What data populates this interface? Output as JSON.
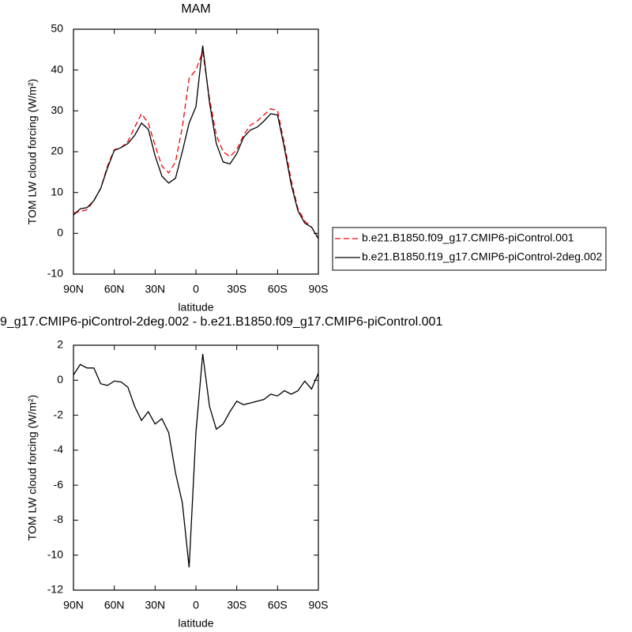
{
  "chart_data": [
    {
      "type": "line",
      "title": "MAM",
      "xlabel": "latitude",
      "ylabel": "TOM LW cloud forcing (W/m²)",
      "x": [
        90,
        85,
        80,
        75,
        70,
        65,
        60,
        55,
        50,
        45,
        40,
        35,
        30,
        25,
        20,
        15,
        10,
        5,
        0,
        -5,
        -10,
        -15,
        -20,
        -25,
        -30,
        -35,
        -40,
        -45,
        -50,
        -55,
        -60,
        -65,
        -70,
        -75,
        -80,
        -85,
        -90
      ],
      "series": [
        {
          "name": "b.e21.B1850.f09_g17.CMIP6-piControl.001",
          "color": "#ff0000",
          "dashed": true,
          "values": [
            5,
            5.3,
            5.8,
            8,
            11,
            16.5,
            20.5,
            21,
            22.5,
            26,
            29.3,
            27,
            21.5,
            16.5,
            14.8,
            17.5,
            26,
            38,
            40,
            44.5,
            33,
            24,
            20,
            18.8,
            20.5,
            24,
            26.5,
            27.5,
            29,
            30.5,
            30,
            22,
            13,
            6,
            3,
            1.5,
            -1.3
          ]
        },
        {
          "name": "b.e21.B1850.f19_g17.CMIP6-piControl-2deg.002",
          "color": "#000000",
          "dashed": false,
          "values": [
            4.5,
            6,
            6.3,
            8,
            11,
            16,
            20.3,
            21,
            22,
            24,
            27,
            25.5,
            19,
            14,
            12.3,
            13.5,
            20,
            27,
            31,
            46,
            32,
            22,
            17.5,
            17,
            19.5,
            23.5,
            25.3,
            26,
            27.5,
            29.3,
            29,
            21,
            12,
            5.5,
            2.5,
            1.5,
            -1.3
          ]
        }
      ],
      "xlim": [
        90,
        -90
      ],
      "xticks": [
        {
          "value": 90,
          "label": "90N"
        },
        {
          "value": 60,
          "label": "60N"
        },
        {
          "value": 30,
          "label": "30N"
        },
        0,
        {
          "value": -30,
          "label": "30S"
        },
        {
          "value": -60,
          "label": "60S"
        },
        {
          "value": -90,
          "label": "90S"
        }
      ],
      "ylim": [
        -10,
        50
      ],
      "yticks": [
        -10,
        0,
        10,
        20,
        30,
        40,
        50
      ],
      "legend": "right"
    },
    {
      "type": "line",
      "title": "9_g17.CMIP6-piControl-2deg.002 - b.e21.B1850.f09_g17.CMIP6-piControl.001",
      "xlabel": "latitude",
      "ylabel": "TOM LW cloud forcing (W/m²)",
      "x": [
        90,
        85,
        80,
        75,
        70,
        65,
        60,
        55,
        50,
        45,
        40,
        35,
        30,
        25,
        20,
        15,
        10,
        5,
        0,
        -5,
        -10,
        -15,
        -20,
        -25,
        -30,
        -35,
        -40,
        -45,
        -50,
        -55,
        -60,
        -65,
        -70,
        -75,
        -80,
        -85,
        -90
      ],
      "series": [
        {
          "color": "#000000",
          "dashed": false,
          "values": [
            0.3,
            0.9,
            0.7,
            0.7,
            -0.2,
            -0.3,
            -0.05,
            -0.1,
            -0.4,
            -1.5,
            -2.3,
            -1.8,
            -2.5,
            -2.2,
            -3.0,
            -5.3,
            -7.0,
            -10.7,
            -3.0,
            1.5,
            -1.5,
            -2.8,
            -2.5,
            -1.8,
            -1.2,
            -1.4,
            -1.3,
            -1.2,
            -1.1,
            -0.8,
            -0.9,
            -0.6,
            -0.8,
            -0.6,
            -0.05,
            -0.5,
            0.4
          ]
        }
      ],
      "xlim": [
        90,
        -90
      ],
      "xticks": [
        {
          "value": 90,
          "label": "90N"
        },
        {
          "value": 60,
          "label": "60N"
        },
        {
          "value": 30,
          "label": "30N"
        },
        0,
        {
          "value": -30,
          "label": "30S"
        },
        {
          "value": -60,
          "label": "60S"
        },
        {
          "value": -90,
          "label": "90S"
        }
      ],
      "ylim": [
        -12,
        2
      ],
      "yticks": [
        -12,
        -10,
        -8,
        -6,
        -4,
        -2,
        0,
        2
      ]
    }
  ]
}
